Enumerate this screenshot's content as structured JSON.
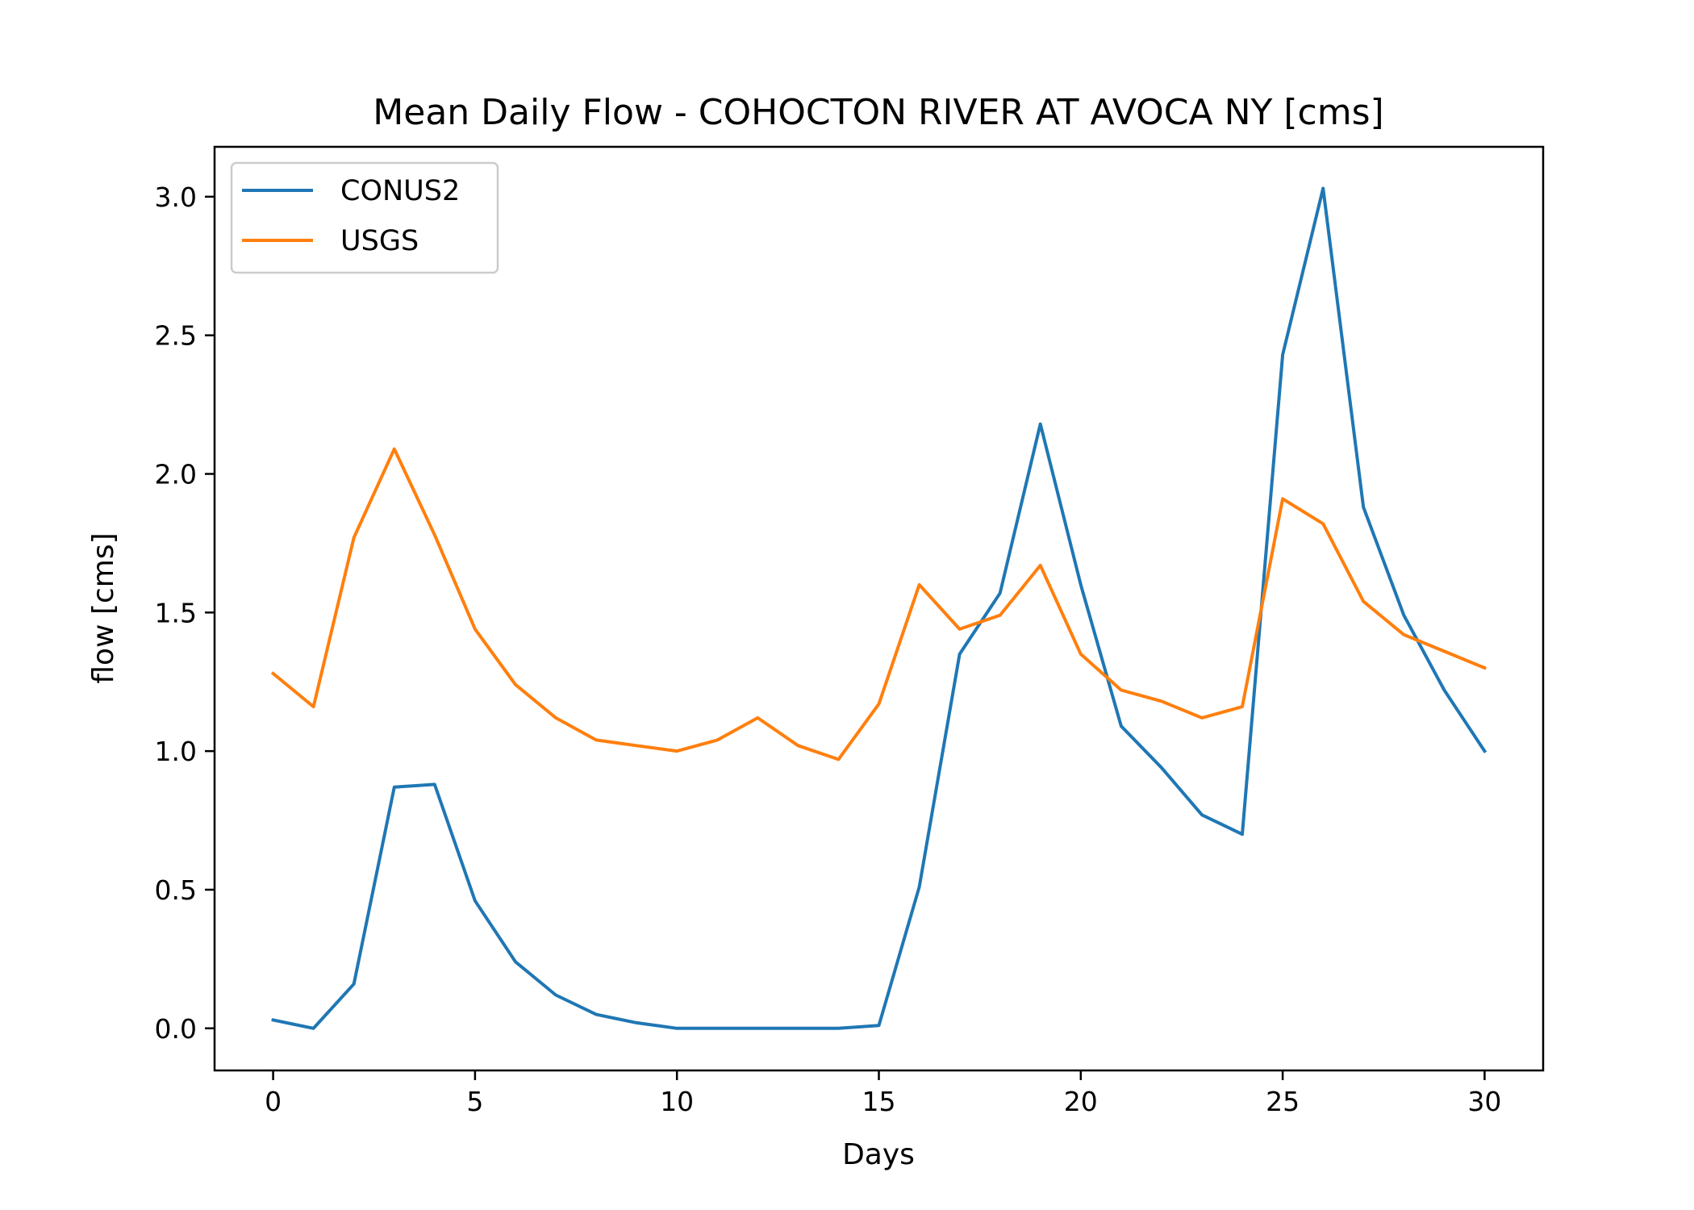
{
  "chart_data": {
    "type": "line",
    "title": "Mean Daily Flow - COHOCTON RIVER AT AVOCA NY [cms]",
    "xlabel": "Days",
    "ylabel": "flow [cms]",
    "xlim": [
      -1.45,
      31.45
    ],
    "ylim": [
      -0.152,
      3.18
    ],
    "xticks": [
      0,
      5,
      10,
      15,
      20,
      25,
      30
    ],
    "yticks": [
      0.0,
      0.5,
      1.0,
      1.5,
      2.0,
      2.5,
      3.0
    ],
    "xtick_labels": [
      "0",
      "5",
      "10",
      "15",
      "20",
      "25",
      "30"
    ],
    "ytick_labels": [
      "0.0",
      "0.5",
      "1.0",
      "1.5",
      "2.0",
      "2.5",
      "3.0"
    ],
    "grid": false,
    "legend_position": "upper-left",
    "x": [
      0,
      1,
      2,
      3,
      4,
      5,
      6,
      7,
      8,
      9,
      10,
      11,
      12,
      13,
      14,
      15,
      16,
      17,
      18,
      19,
      20,
      21,
      22,
      23,
      24,
      25,
      26,
      27,
      28,
      29,
      30
    ],
    "series": [
      {
        "name": "CONUS2",
        "color": "#1f77b4",
        "values": [
          0.03,
          0.0,
          0.16,
          0.87,
          0.88,
          0.46,
          0.24,
          0.12,
          0.05,
          0.02,
          0.0,
          0.0,
          0.0,
          0.0,
          0.0,
          0.01,
          0.51,
          1.35,
          1.57,
          2.18,
          1.6,
          1.09,
          0.94,
          0.77,
          0.7,
          2.43,
          3.03,
          1.88,
          1.49,
          1.22,
          1.0
        ]
      },
      {
        "name": "USGS",
        "color": "#ff7f0e",
        "values": [
          1.28,
          1.16,
          1.77,
          2.09,
          1.78,
          1.44,
          1.24,
          1.12,
          1.04,
          1.02,
          1.0,
          1.04,
          1.12,
          1.02,
          0.97,
          1.17,
          1.6,
          1.44,
          1.49,
          1.67,
          1.35,
          1.22,
          1.18,
          1.12,
          1.16,
          1.91,
          1.82,
          1.54,
          1.42,
          1.36,
          1.3
        ]
      }
    ]
  }
}
